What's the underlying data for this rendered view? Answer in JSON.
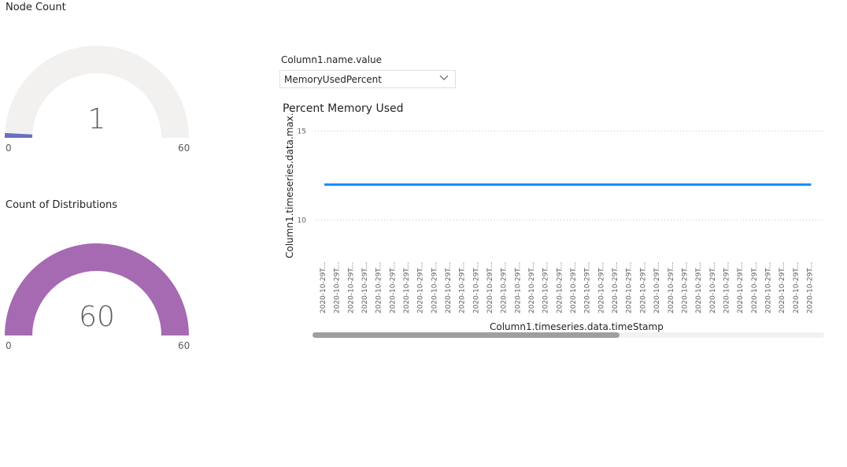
{
  "gauges": [
    {
      "title": "Node Count",
      "value": 1,
      "display": "1",
      "min": 0,
      "max": 60,
      "min_label": "0",
      "max_label": "60",
      "fill_color": "#6b6fc1",
      "track_color": "#f2f1f0"
    },
    {
      "title": "Count of Distributions",
      "value": 60,
      "display": "60",
      "min": 0,
      "max": 60,
      "min_label": "0",
      "max_label": "60",
      "fill_color": "#a66ab3",
      "track_color": "#f2f1f0"
    }
  ],
  "slicer": {
    "header": "Column1.name.value",
    "selected": "MemoryUsedPercent",
    "icon": "chevron-down-icon"
  },
  "chart": {
    "title": "Percent Memory Used",
    "ylabel": "Column1.timeseries.data.max...",
    "xlabel": "Column1.timeseries.data.timeStamp",
    "scroll_fraction": 0.6
  },
  "chart_data": {
    "type": "line",
    "title": "Percent Memory Used",
    "xlabel": "Column1.timeseries.data.timeStamp",
    "ylabel": "Column1.timeseries.data.max...",
    "y_ticks": [
      "15",
      "10"
    ],
    "ylim": [
      8,
      15.5
    ],
    "grid": true,
    "x": [
      "2020-10-29T...",
      "2020-10-29T...",
      "2020-10-29T...",
      "2020-10-29T...",
      "2020-10-29T...",
      "2020-10-29T...",
      "2020-10-29T...",
      "2020-10-29T...",
      "2020-10-29T...",
      "2020-10-29T...",
      "2020-10-29T...",
      "2020-10-29T...",
      "2020-10-29T...",
      "2020-10-29T...",
      "2020-10-29T...",
      "2020-10-29T...",
      "2020-10-29T...",
      "2020-10-29T...",
      "2020-10-29T...",
      "2020-10-29T...",
      "2020-10-29T...",
      "2020-10-29T...",
      "2020-10-29T...",
      "2020-10-29T...",
      "2020-10-29T...",
      "2020-10-29T...",
      "2020-10-29T...",
      "2020-10-29T...",
      "2020-10-29T...",
      "2020-10-29T...",
      "2020-10-29T...",
      "2020-10-29T...",
      "2020-10-29T...",
      "2020-10-29T...",
      "2020-10-29T...",
      "2020-10-29T..."
    ],
    "series": [
      {
        "color": "#118dff",
        "values": [
          12,
          12,
          12,
          12,
          12,
          12,
          12,
          12,
          12,
          12,
          12,
          12,
          12,
          12,
          12,
          12,
          12,
          12,
          12,
          12,
          12,
          12,
          12,
          12,
          12,
          12,
          12,
          12,
          12,
          12,
          12,
          12,
          12,
          12,
          12,
          12
        ]
      }
    ]
  }
}
